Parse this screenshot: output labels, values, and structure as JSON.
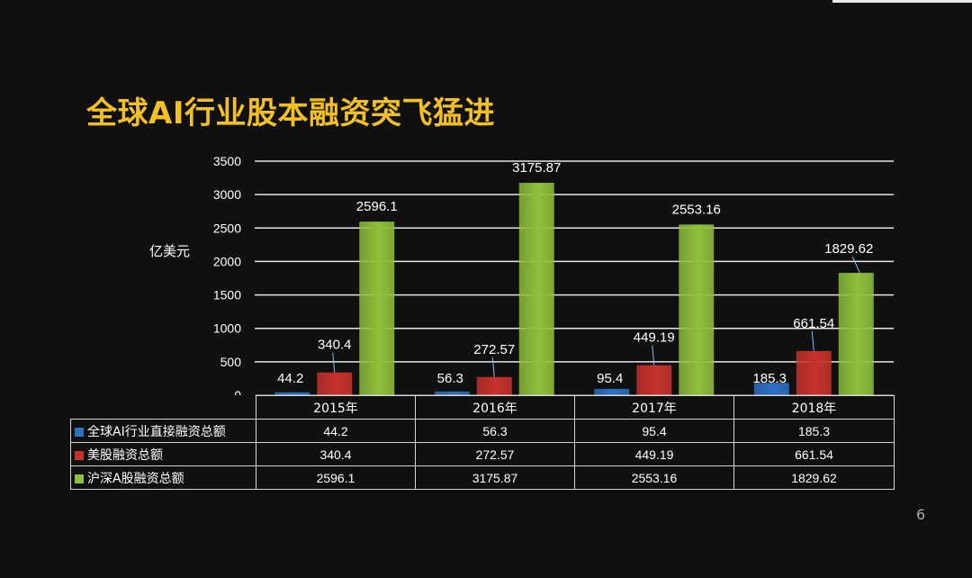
{
  "slide": {
    "title": "全球AI行业股本融资突飞猛进",
    "page_number": "6"
  },
  "chart_data": {
    "type": "bar",
    "title": "全球AI行业股本融资突飞猛进",
    "ylabel": "亿美元",
    "xlabel": "",
    "ylim": [
      0,
      3500
    ],
    "yticks": [
      "0",
      "500",
      "1000",
      "1500",
      "2000",
      "2500",
      "3000",
      "3500"
    ],
    "grid": true,
    "legend_placement": "data-table",
    "categories": [
      "2015年",
      "2016年",
      "2017年",
      "2018年"
    ],
    "series": [
      {
        "name": "全球AI行业直接融资总额",
        "color": "#2e6fc4",
        "values": [
          44.2,
          56.3,
          95.4,
          185.3
        ],
        "labels": [
          "44.2",
          "56.3",
          "95.4",
          "185.3"
        ]
      },
      {
        "name": "美股融资总额",
        "color": "#c8322c",
        "values": [
          340.4,
          272.57,
          449.19,
          661.54
        ],
        "labels": [
          "340.4",
          "272.57",
          "449.19",
          "661.54"
        ]
      },
      {
        "name": "沪深A股融资总额",
        "color": "#8fc03b",
        "values": [
          2596.1,
          3175.87,
          2553.16,
          1829.62
        ],
        "labels": [
          "2596.1",
          "3175.87",
          "2553.16",
          "1829.62"
        ]
      }
    ]
  }
}
